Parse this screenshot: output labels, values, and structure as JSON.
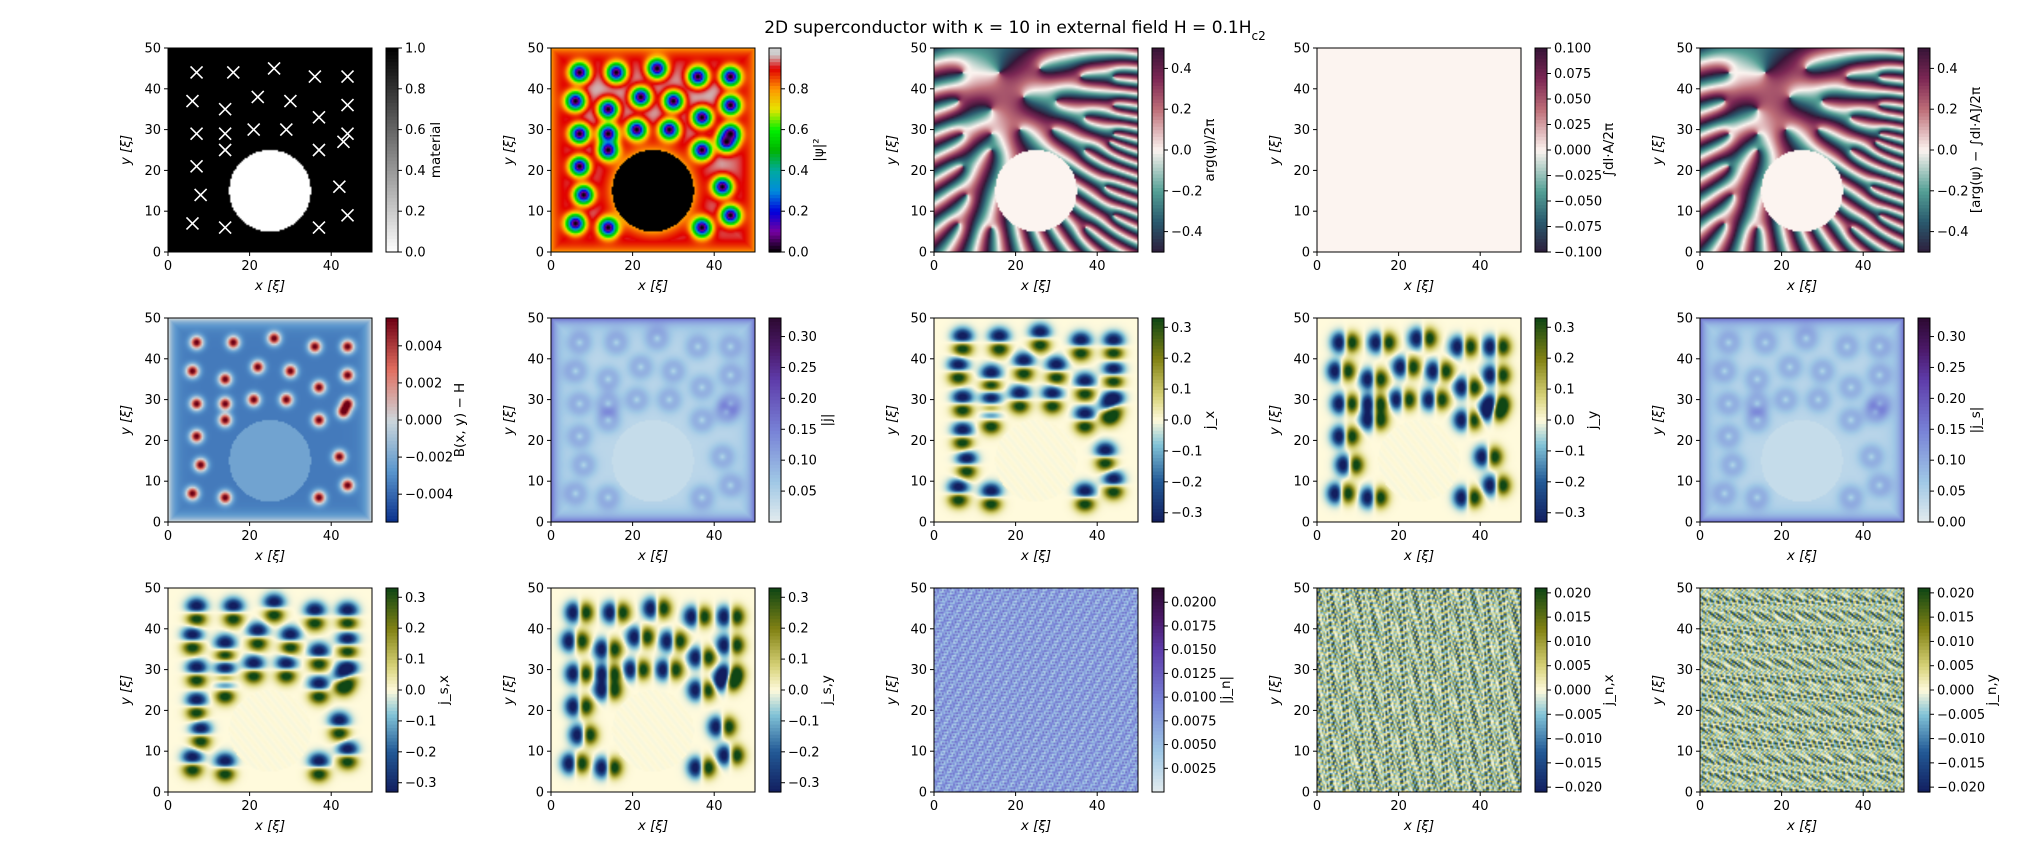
{
  "figure": {
    "title": "2D superconductor with κ = 10 in external field H = 0.1H",
    "title_sub": "c2"
  },
  "chart_data": [
    {
      "type": "heatmap",
      "panel": "material",
      "xlabel": "x [ξ]",
      "ylabel": "y [ξ]",
      "xlim": [
        0,
        50
      ],
      "ylim": [
        0,
        50
      ],
      "xticks": [
        0,
        20,
        40
      ],
      "yticks": [
        0,
        10,
        20,
        30,
        40,
        50
      ],
      "cbar_label": "material",
      "cbar_range": [
        0,
        1
      ],
      "cbar_ticks": [
        "0.0",
        "0.2",
        "0.4",
        "0.6",
        "0.8",
        "1.0"
      ],
      "colormap": "gray_r",
      "field": "material",
      "hole": {
        "cx": 25,
        "cy": 15,
        "r": 10
      },
      "pins": [
        [
          7,
          44
        ],
        [
          16,
          44
        ],
        [
          26,
          45
        ],
        [
          36,
          43
        ],
        [
          44,
          43
        ],
        [
          6,
          37
        ],
        [
          14,
          35
        ],
        [
          22,
          38
        ],
        [
          30,
          37
        ],
        [
          44,
          36
        ],
        [
          7,
          29
        ],
        [
          14,
          29
        ],
        [
          21,
          30
        ],
        [
          29,
          30
        ],
        [
          37,
          33
        ],
        [
          44,
          29
        ],
        [
          7,
          21
        ],
        [
          14,
          25
        ],
        [
          37,
          25
        ],
        [
          43,
          27
        ],
        [
          8,
          14
        ],
        [
          42,
          16
        ],
        [
          6,
          7
        ],
        [
          14,
          6
        ],
        [
          37,
          6
        ],
        [
          44,
          9
        ]
      ],
      "vortices": [
        [
          7,
          44
        ],
        [
          16,
          44
        ],
        [
          26,
          45
        ],
        [
          36,
          43
        ],
        [
          44,
          43
        ],
        [
          6,
          37
        ],
        [
          14,
          35
        ],
        [
          22,
          38
        ],
        [
          30,
          37
        ],
        [
          44,
          36
        ],
        [
          7,
          29
        ],
        [
          14,
          29
        ],
        [
          21,
          30
        ],
        [
          29,
          30
        ],
        [
          37,
          33
        ],
        [
          44,
          29
        ],
        [
          7,
          21
        ],
        [
          14,
          25
        ],
        [
          37,
          25
        ],
        [
          43,
          27
        ],
        [
          8,
          14
        ],
        [
          42,
          16
        ],
        [
          6,
          7
        ],
        [
          14,
          6
        ],
        [
          37,
          6
        ],
        [
          44,
          9
        ]
      ]
    },
    {
      "type": "heatmap",
      "panel": "psi_sq",
      "xlabel": "x [ξ]",
      "ylabel": "y [ξ]",
      "xlim": [
        0,
        50
      ],
      "ylim": [
        0,
        50
      ],
      "xticks": [
        0,
        20,
        40
      ],
      "yticks": [
        0,
        10,
        20,
        30,
        40,
        50
      ],
      "cbar_label": "|ψ|²",
      "cbar_range": [
        0,
        1
      ],
      "cbar_ticks": [
        "0.0",
        "0.2",
        "0.4",
        "0.6",
        "0.8"
      ],
      "colormap": "nipy_spectral",
      "field": "psi_sq"
    },
    {
      "type": "heatmap",
      "panel": "phase",
      "xlabel": "x [ξ]",
      "ylabel": "y [ξ]",
      "xlim": [
        0,
        50
      ],
      "ylim": [
        0,
        50
      ],
      "xticks": [
        0,
        20,
        40
      ],
      "yticks": [
        0,
        10,
        20,
        30,
        40,
        50
      ],
      "cbar_label": "arg(ψ)/2π",
      "cbar_range": [
        -0.5,
        0.5
      ],
      "cbar_ticks": [
        "−0.4",
        "−0.2",
        "0.0",
        "0.2",
        "0.4"
      ],
      "colormap": "twilight",
      "field": "phase"
    },
    {
      "type": "heatmap",
      "panel": "gauge",
      "xlabel": "x [ξ]",
      "ylabel": "y [ξ]",
      "xlim": [
        0,
        50
      ],
      "ylim": [
        0,
        50
      ],
      "xticks": [
        0,
        20,
        40
      ],
      "yticks": [
        0,
        10,
        20,
        30,
        40,
        50
      ],
      "cbar_label": "∫dl·A/2π",
      "cbar_range": [
        -0.1,
        0.1
      ],
      "cbar_ticks": [
        "−0.100",
        "−0.075",
        "−0.050",
        "−0.025",
        "0.000",
        "0.025",
        "0.050",
        "0.075",
        "0.100"
      ],
      "colormap": "twilight",
      "field": "gauge"
    },
    {
      "type": "heatmap",
      "panel": "phase_minus_gauge",
      "xlabel": "x [ξ]",
      "ylabel": "y [ξ]",
      "xlim": [
        0,
        50
      ],
      "ylim": [
        0,
        50
      ],
      "xticks": [
        0,
        20,
        40
      ],
      "yticks": [
        0,
        10,
        20,
        30,
        40,
        50
      ],
      "cbar_label": "[arg(ψ) − ∫dl·A]/2π",
      "cbar_range": [
        -0.5,
        0.5
      ],
      "cbar_ticks": [
        "−0.4",
        "−0.2",
        "0.0",
        "0.2",
        "0.4"
      ],
      "colormap": "twilight",
      "field": "phase"
    },
    {
      "type": "heatmap",
      "panel": "B_minus_H",
      "xlabel": "x [ξ]",
      "ylabel": "y [ξ]",
      "xlim": [
        0,
        50
      ],
      "ylim": [
        0,
        50
      ],
      "xticks": [
        0,
        20,
        40
      ],
      "yticks": [
        0,
        10,
        20,
        30,
        40,
        50
      ],
      "cbar_label": "B(x, y) − H",
      "cbar_range": [
        -0.0055,
        0.0055
      ],
      "cbar_ticks": [
        "−0.004",
        "−0.002",
        "0.000",
        "0.002",
        "0.004"
      ],
      "colormap": "RdBu_r",
      "field": "B"
    },
    {
      "type": "heatmap",
      "panel": "j_mag",
      "xlabel": "x [ξ]",
      "ylabel": "y [ξ]",
      "xlim": [
        0,
        50
      ],
      "ylim": [
        0,
        50
      ],
      "xticks": [
        0,
        20,
        40
      ],
      "yticks": [
        0,
        10,
        20,
        30,
        40,
        50
      ],
      "cbar_label": "|j|",
      "cbar_range": [
        0,
        0.33
      ],
      "cbar_ticks": [
        "0.05",
        "0.10",
        "0.15",
        "0.20",
        "0.25",
        "0.30"
      ],
      "colormap": "twilight_half",
      "field": "jmag"
    },
    {
      "type": "heatmap",
      "panel": "j_x",
      "xlabel": "x [ξ]",
      "ylabel": "y [ξ]",
      "xlim": [
        0,
        50
      ],
      "ylim": [
        0,
        50
      ],
      "xticks": [
        0,
        20,
        40
      ],
      "yticks": [
        0,
        10,
        20,
        30,
        40,
        50
      ],
      "cbar_label": "j_x",
      "cbar_range": [
        -0.33,
        0.33
      ],
      "cbar_ticks": [
        "−0.3",
        "−0.2",
        "−0.1",
        "0.0",
        "0.1",
        "0.2",
        "0.3"
      ],
      "colormap": "cividis_div",
      "field": "jx"
    },
    {
      "type": "heatmap",
      "panel": "j_y",
      "xlabel": "x [ξ]",
      "ylabel": "y [ξ]",
      "xlim": [
        0,
        50
      ],
      "ylim": [
        0,
        50
      ],
      "xticks": [
        0,
        20,
        40
      ],
      "yticks": [
        0,
        10,
        20,
        30,
        40,
        50
      ],
      "cbar_label": "j_y",
      "cbar_range": [
        -0.33,
        0.33
      ],
      "cbar_ticks": [
        "−0.3",
        "−0.2",
        "−0.1",
        "0.0",
        "0.1",
        "0.2",
        "0.3"
      ],
      "colormap": "cividis_div",
      "field": "jy"
    },
    {
      "type": "heatmap",
      "panel": "js_mag",
      "xlabel": "x [ξ]",
      "ylabel": "y [ξ]",
      "xlim": [
        0,
        50
      ],
      "ylim": [
        0,
        50
      ],
      "xticks": [
        0,
        20,
        40
      ],
      "yticks": [
        0,
        10,
        20,
        30,
        40,
        50
      ],
      "cbar_label": "|j_s|",
      "cbar_range": [
        0,
        0.33
      ],
      "cbar_ticks": [
        "0.00",
        "0.05",
        "0.10",
        "0.15",
        "0.20",
        "0.25",
        "0.30"
      ],
      "colormap": "twilight_half",
      "field": "jmag"
    },
    {
      "type": "heatmap",
      "panel": "js_x",
      "xlabel": "x [ξ]",
      "ylabel": "y [ξ]",
      "xlim": [
        0,
        50
      ],
      "ylim": [
        0,
        50
      ],
      "xticks": [
        0,
        20,
        40
      ],
      "yticks": [
        0,
        10,
        20,
        30,
        40,
        50
      ],
      "cbar_label": "j_s,x",
      "cbar_range": [
        -0.33,
        0.33
      ],
      "cbar_ticks": [
        "−0.3",
        "−0.2",
        "−0.1",
        "0.0",
        "0.1",
        "0.2",
        "0.3"
      ],
      "colormap": "cividis_div",
      "field": "jx"
    },
    {
      "type": "heatmap",
      "panel": "js_y",
      "xlabel": "x [ξ]",
      "ylabel": "y [ξ]",
      "xlim": [
        0,
        50
      ],
      "ylim": [
        0,
        50
      ],
      "xticks": [
        0,
        20,
        40
      ],
      "yticks": [
        0,
        10,
        20,
        30,
        40,
        50
      ],
      "cbar_label": "j_s,y",
      "cbar_range": [
        -0.33,
        0.33
      ],
      "cbar_ticks": [
        "−0.3",
        "−0.2",
        "−0.1",
        "0.0",
        "0.1",
        "0.2",
        "0.3"
      ],
      "colormap": "cividis_div",
      "field": "jy"
    },
    {
      "type": "heatmap",
      "panel": "jn_mag",
      "xlabel": "x [ξ]",
      "ylabel": "y [ξ]",
      "xlim": [
        0,
        50
      ],
      "ylim": [
        0,
        50
      ],
      "xticks": [
        0,
        20,
        40
      ],
      "yticks": [
        0,
        10,
        20,
        30,
        40,
        50
      ],
      "cbar_label": "|j_n|",
      "cbar_range": [
        0,
        0.0215
      ],
      "cbar_ticks": [
        "0.0025",
        "0.0050",
        "0.0075",
        "0.0100",
        "0.0125",
        "0.0150",
        "0.0175",
        "0.0200"
      ],
      "colormap": "twilight_half",
      "field": "noise_mag"
    },
    {
      "type": "heatmap",
      "panel": "jn_x",
      "xlabel": "x [ξ]",
      "ylabel": "y [ξ]",
      "xlim": [
        0,
        50
      ],
      "ylim": [
        0,
        50
      ],
      "xticks": [
        0,
        20,
        40
      ],
      "yticks": [
        0,
        10,
        20,
        30,
        40,
        50
      ],
      "cbar_label": "j_n,x",
      "cbar_range": [
        -0.021,
        0.021
      ],
      "cbar_ticks": [
        "−0.020",
        "−0.015",
        "−0.010",
        "−0.005",
        "0.000",
        "0.005",
        "0.010",
        "0.015",
        "0.020"
      ],
      "colormap": "cividis_div",
      "field": "noise_x"
    },
    {
      "type": "heatmap",
      "panel": "jn_y",
      "xlabel": "x [ξ]",
      "ylabel": "y [ξ]",
      "xlim": [
        0,
        50
      ],
      "ylim": [
        0,
        50
      ],
      "xticks": [
        0,
        20,
        40
      ],
      "yticks": [
        0,
        10,
        20,
        30,
        40,
        50
      ],
      "cbar_label": "j_n,y",
      "cbar_range": [
        -0.021,
        0.021
      ],
      "cbar_ticks": [
        "−0.020",
        "−0.015",
        "−0.010",
        "−0.005",
        "0.000",
        "0.005",
        "0.010",
        "0.015",
        "0.020"
      ],
      "colormap": "cividis_div",
      "field": "noise_y"
    }
  ]
}
